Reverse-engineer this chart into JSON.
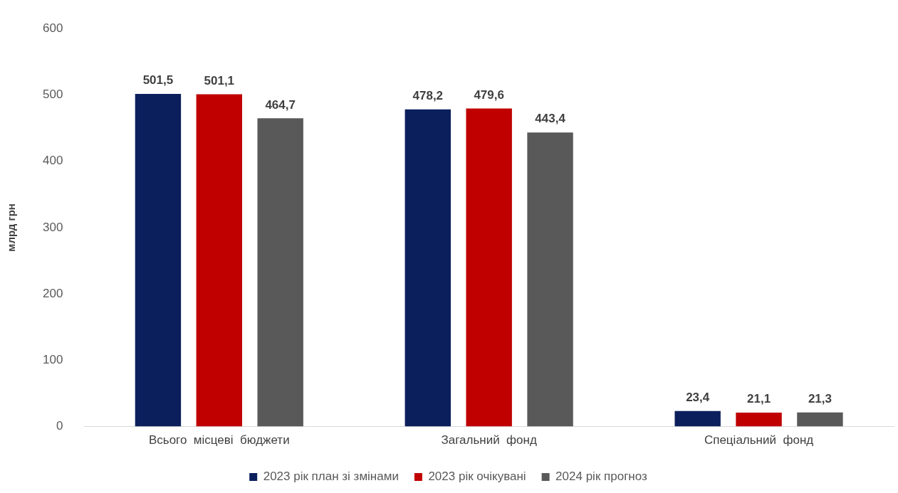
{
  "chart_data": {
    "type": "bar",
    "ylabel": "млрд грн",
    "categories": [
      "Всього  місцеві  бюджети",
      "Загальний  фонд",
      "Спеціальний  фонд"
    ],
    "series": [
      {
        "name": "2023 рік план зі змінами",
        "color": "#0b1f5c",
        "values": [
          501.5,
          478.2,
          23.4
        ],
        "value_labels": [
          "501,5",
          "478,2",
          "23,4"
        ]
      },
      {
        "name": "2023 рік очікувані",
        "color": "#c00000",
        "values": [
          501.1,
          479.6,
          21.1
        ],
        "value_labels": [
          "501,1",
          "479,6",
          "21,1"
        ]
      },
      {
        "name": "2024 рік прогноз",
        "color": "#595959",
        "values": [
          464.7,
          443.4,
          21.3
        ],
        "value_labels": [
          "464,7",
          "443,4",
          "21,3"
        ]
      }
    ],
    "ylim": [
      0,
      600
    ],
    "yticks": [
      0,
      100,
      200,
      300,
      400,
      500,
      600
    ],
    "grid": false,
    "legend": "bottom"
  }
}
